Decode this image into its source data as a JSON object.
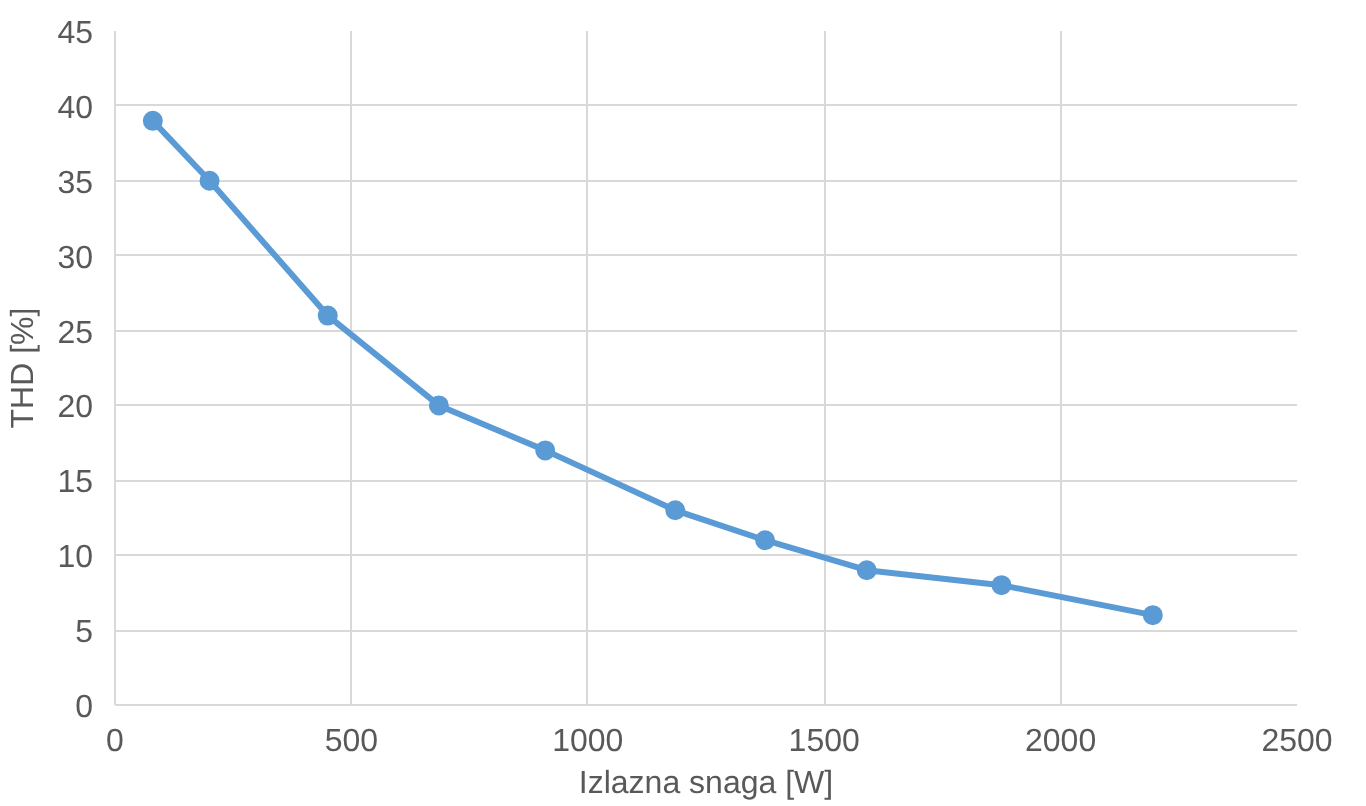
{
  "chart_data": {
    "type": "line",
    "xlabel": "Izlazna snaga [W]",
    "ylabel": "THD [%]",
    "x": [
      80,
      200,
      450,
      685,
      910,
      1185,
      1375,
      1590,
      1875,
      2195
    ],
    "series": [
      {
        "color": "#5b9bd5",
        "values": [
          39,
          35,
          26,
          20,
          17,
          13,
          11,
          9,
          8,
          6
        ]
      }
    ],
    "xlim": [
      0,
      2500
    ],
    "xticks": [
      0,
      500,
      1000,
      1500,
      2000,
      2500
    ],
    "ylim": [
      0,
      45
    ],
    "yticks": [
      0,
      5,
      10,
      15,
      20,
      25,
      30,
      35,
      40,
      45
    ],
    "grid": true,
    "marker": "circle",
    "line_style": "solid"
  }
}
